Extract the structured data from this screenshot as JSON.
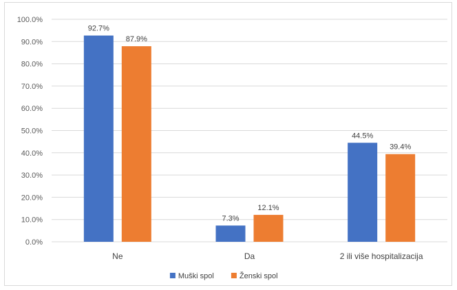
{
  "chart_data": {
    "type": "bar",
    "title": "",
    "xlabel": "",
    "ylabel": "",
    "categories": [
      "Ne",
      "Da",
      "2 ili više hospitalizacija"
    ],
    "series": [
      {
        "name": "Muški spol",
        "values": [
          92.7,
          7.3,
          44.5
        ],
        "labels": [
          "92.7%",
          "7.3%",
          "44.5%"
        ],
        "color": "#4472C4"
      },
      {
        "name": "Ženski spol",
        "values": [
          87.9,
          12.1,
          39.4
        ],
        "labels": [
          "87.9%",
          "12.1%",
          "39.4%"
        ],
        "color": "#ED7D31"
      }
    ],
    "ylim": [
      0,
      100
    ],
    "y_ticks": [
      0,
      10,
      20,
      30,
      40,
      50,
      60,
      70,
      80,
      90,
      100
    ],
    "y_tick_labels": [
      "0.0%",
      "10.0%",
      "20.0%",
      "30.0%",
      "40.0%",
      "50.0%",
      "60.0%",
      "70.0%",
      "80.0%",
      "90.0%",
      "100.0%"
    ],
    "grid": true,
    "gridline_color": "#d9d9d9",
    "legend_position": "bottom"
  }
}
